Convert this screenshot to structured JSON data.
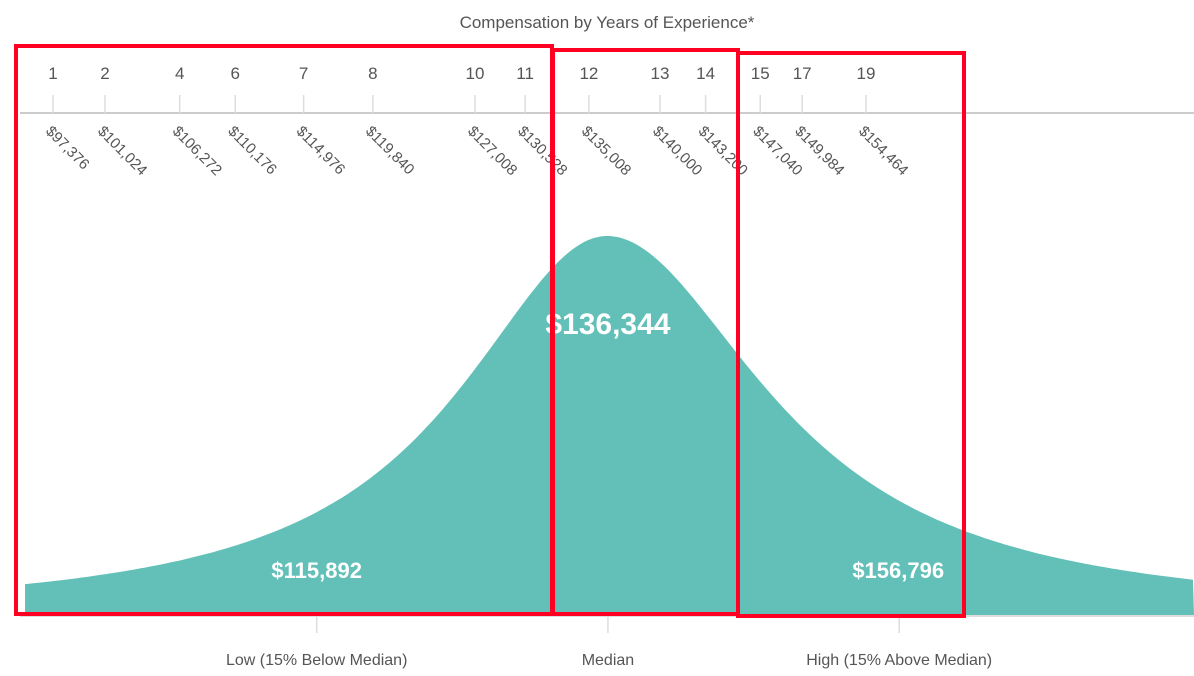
{
  "chart_data": {
    "type": "area",
    "title": "Compensation by Years of Experience*",
    "experience_ticks": [
      {
        "years": "1",
        "salary": "$97,376",
        "value": 97376
      },
      {
        "years": "2",
        "salary": "$101,024",
        "value": 101024
      },
      {
        "years": "4",
        "salary": "$106,272",
        "value": 106272
      },
      {
        "years": "6",
        "salary": "$110,176",
        "value": 110176
      },
      {
        "years": "7",
        "salary": "$114,976",
        "value": 114976
      },
      {
        "years": "8",
        "salary": "$119,840",
        "value": 119840
      },
      {
        "years": "10",
        "salary": "$127,008",
        "value": 127008
      },
      {
        "years": "11",
        "salary": "$130,528",
        "value": 130528
      },
      {
        "years": "12",
        "salary": "$135,008",
        "value": 135008
      },
      {
        "years": "13",
        "salary": "$140,000",
        "value": 140000
      },
      {
        "years": "14",
        "salary": "$143,200",
        "value": 143200
      },
      {
        "years": "15",
        "salary": "$147,040",
        "value": 147040
      },
      {
        "years": "17",
        "salary": "$149,984",
        "value": 149984
      },
      {
        "years": "19",
        "salary": "$154,464",
        "value": 154464
      }
    ],
    "markers": [
      {
        "category": "Low (15% Below Median)",
        "label": "$115,892",
        "value": 115892
      },
      {
        "category": "Median",
        "label": "$136,344",
        "value": 136344
      },
      {
        "category": "High (15% Above Median)",
        "label": "$156,796",
        "value": 156796
      }
    ],
    "colors": {
      "fill": "#63c0b8",
      "highlight": "#ff0022",
      "text": "#555555",
      "axis": "#cccccc"
    }
  }
}
